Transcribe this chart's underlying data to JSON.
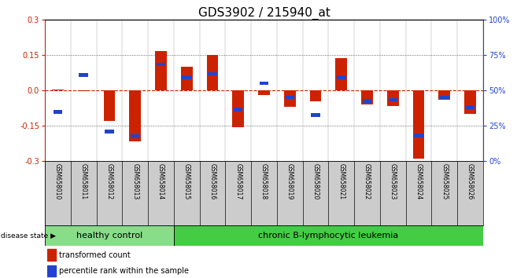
{
  "title": "GDS3902 / 215940_at",
  "samples": [
    "GSM658010",
    "GSM658011",
    "GSM658012",
    "GSM658013",
    "GSM658014",
    "GSM658015",
    "GSM658016",
    "GSM658017",
    "GSM658018",
    "GSM658019",
    "GSM658020",
    "GSM658021",
    "GSM658022",
    "GSM658023",
    "GSM658024",
    "GSM658025",
    "GSM658026"
  ],
  "red_bars": [
    0.003,
    -0.003,
    -0.13,
    -0.215,
    0.165,
    0.1,
    0.15,
    -0.155,
    -0.02,
    -0.07,
    -0.045,
    0.135,
    -0.06,
    -0.065,
    -0.29,
    -0.04,
    -0.1
  ],
  "blue_squares_yval": [
    -0.09,
    0.065,
    -0.175,
    -0.195,
    0.11,
    0.055,
    0.07,
    -0.082,
    0.03,
    -0.03,
    -0.105,
    0.055,
    -0.045,
    -0.04,
    -0.19,
    -0.03,
    -0.07
  ],
  "healthy_count": 5,
  "ylim": [
    -0.3,
    0.3
  ],
  "yticks_left": [
    -0.3,
    -0.15,
    0.0,
    0.15,
    0.3
  ],
  "yticks_right_pct": [
    0,
    25,
    50,
    75,
    100
  ],
  "bar_color": "#cc2200",
  "square_color": "#2244cc",
  "healthy_color": "#88dd88",
  "leukemia_color": "#44cc44",
  "zero_line_color": "#cc2200",
  "dotted_line_color": "#444444",
  "cell_color": "#cccccc",
  "title_fontsize": 11,
  "tick_fontsize": 7,
  "sample_fontsize": 5.5,
  "disease_fontsize": 8,
  "legend_fontsize": 7
}
